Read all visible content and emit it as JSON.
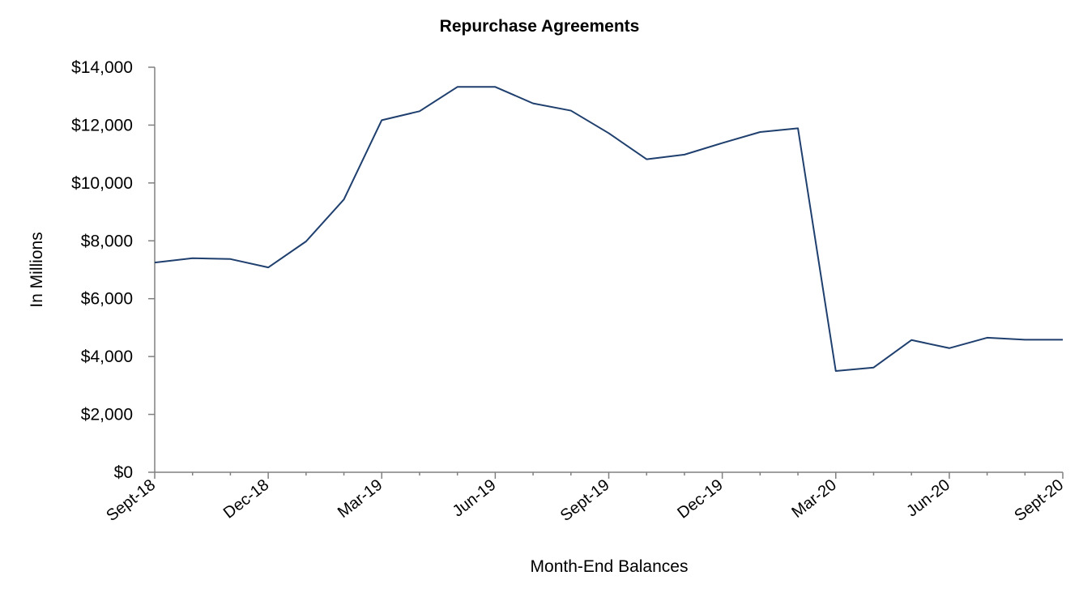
{
  "colors": {
    "series": "#1f3f6e",
    "axis": "#808080"
  },
  "chart_data": {
    "type": "line",
    "title": "Repurchase Agreements",
    "xlabel": "Month-End Balances",
    "ylabel": "In Millions",
    "ylim": [
      0,
      14000
    ],
    "yticks": [
      0,
      2000,
      4000,
      6000,
      8000,
      10000,
      12000,
      14000
    ],
    "ytick_labels": [
      "$0",
      "$2,000",
      "$4,000",
      "$6,000",
      "$8,000",
      "$10,000",
      "$12,000",
      "$14,000"
    ],
    "xtick_labels": [
      "Sept-18",
      "Dec-18",
      "Mar-19",
      "Jun-19",
      "Sept-19",
      "Dec-19",
      "Mar-20",
      "Jun-20",
      "Sept-20"
    ],
    "x": [
      "Sep-18",
      "Oct-18",
      "Nov-18",
      "Dec-18",
      "Jan-19",
      "Feb-19",
      "Mar-19",
      "Apr-19",
      "May-19",
      "Jun-19",
      "Jul-19",
      "Aug-19",
      "Sep-19",
      "Oct-19",
      "Nov-19",
      "Dec-19",
      "Jan-20",
      "Feb-20",
      "Mar-20",
      "Apr-20",
      "May-20",
      "Jun-20",
      "Jul-20",
      "Aug-20",
      "Sep-20"
    ],
    "series": [
      {
        "values": [
          7250,
          7400,
          7370,
          7080,
          7980,
          9430,
          12170,
          12480,
          13320,
          13320,
          12750,
          12500,
          11720,
          10820,
          10980,
          11380,
          11760,
          11890,
          3500,
          3620,
          4570,
          4290,
          4650,
          4580,
          4580
        ]
      }
    ],
    "grid": false,
    "legend": "none"
  }
}
